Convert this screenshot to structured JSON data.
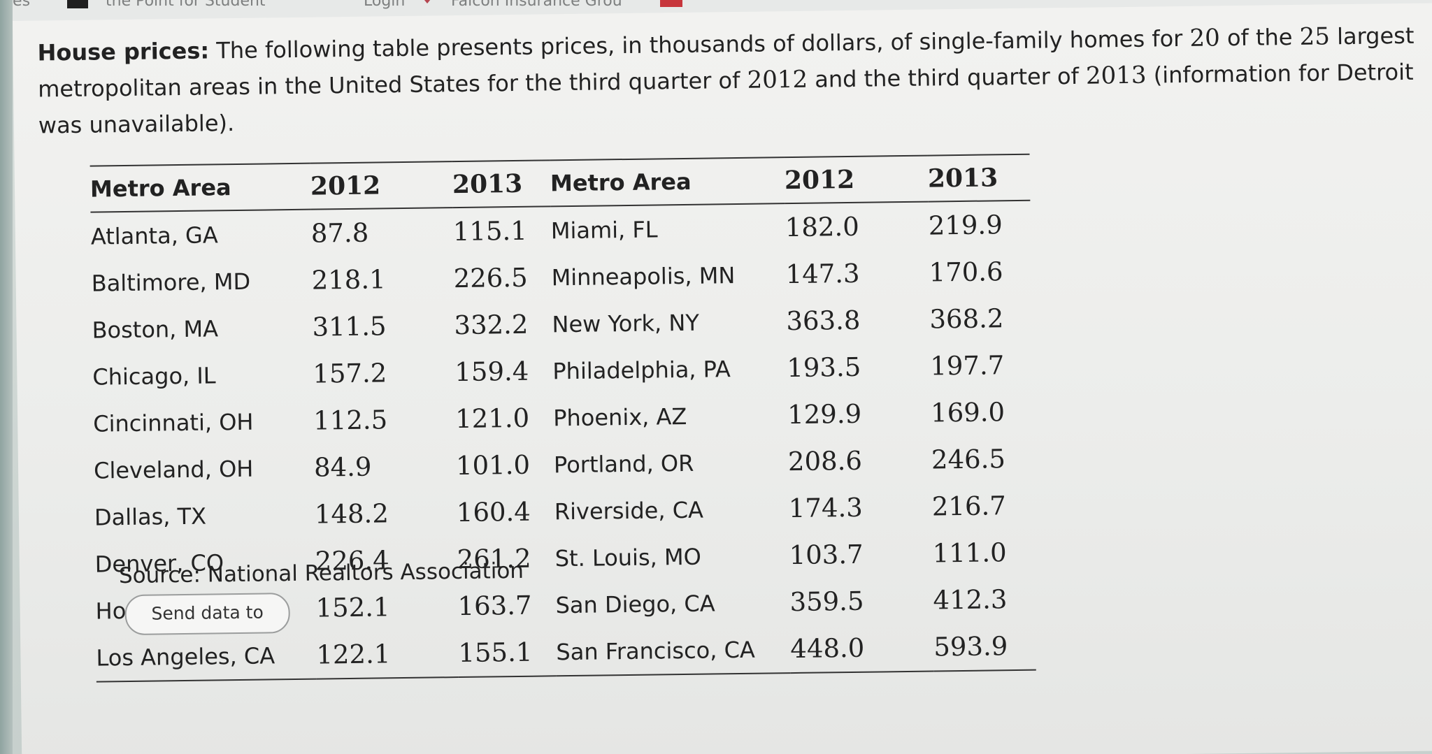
{
  "browser": {
    "tab_1": "nces",
    "tab_2": "the Point for Student",
    "tab_3": "Login",
    "tab_4": "Falcon Insurance Grou"
  },
  "problem": {
    "label": "House prices:",
    "text_part_1": "The following table presents prices, in thousands of dollars, of single-family homes for",
    "num_20": "20",
    "text_part_2": "of the",
    "num_25": "25",
    "text_part_3": "largest metropolitan areas in the United States for the third quarter of",
    "year_2012": "2012",
    "text_part_4": "and the third quarter of",
    "year_2013": "2013",
    "text_part_5": "(information for Detroit was unavailable)."
  },
  "table": {
    "headers": [
      "Metro Area",
      "2012",
      "2013",
      "Metro Area",
      "2012",
      "2013"
    ],
    "rows": [
      [
        "Atlanta, GA",
        "87.8",
        "115.1",
        "Miami, FL",
        "182.0",
        "219.9"
      ],
      [
        "Baltimore, MD",
        "218.1",
        "226.5",
        "Minneapolis, MN",
        "147.3",
        "170.6"
      ],
      [
        "Boston, MA",
        "311.5",
        "332.2",
        "New York, NY",
        "363.8",
        "368.2"
      ],
      [
        "Chicago, IL",
        "157.2",
        "159.4",
        "Philadelphia, PA",
        "193.5",
        "197.7"
      ],
      [
        "Cincinnati, OH",
        "112.5",
        "121.0",
        "Phoenix, AZ",
        "129.9",
        "169.0"
      ],
      [
        "Cleveland, OH",
        "84.9",
        "101.0",
        "Portland, OR",
        "208.6",
        "246.5"
      ],
      [
        "Dallas, TX",
        "148.2",
        "160.4",
        "Riverside, CA",
        "174.3",
        "216.7"
      ],
      [
        "Denver, CO",
        "226.4",
        "261.2",
        "St. Louis, MO",
        "103.7",
        "111.0"
      ],
      [
        "Houston, TX",
        "152.1",
        "163.7",
        "San Diego, CA",
        "359.5",
        "412.3"
      ],
      [
        "Los Angeles, CA",
        "122.1",
        "155.1",
        "San Francisco, CA",
        "448.0",
        "593.9"
      ]
    ]
  },
  "source": "Source: National Realtors Association",
  "excel_button_label": "Send data to Excel"
}
